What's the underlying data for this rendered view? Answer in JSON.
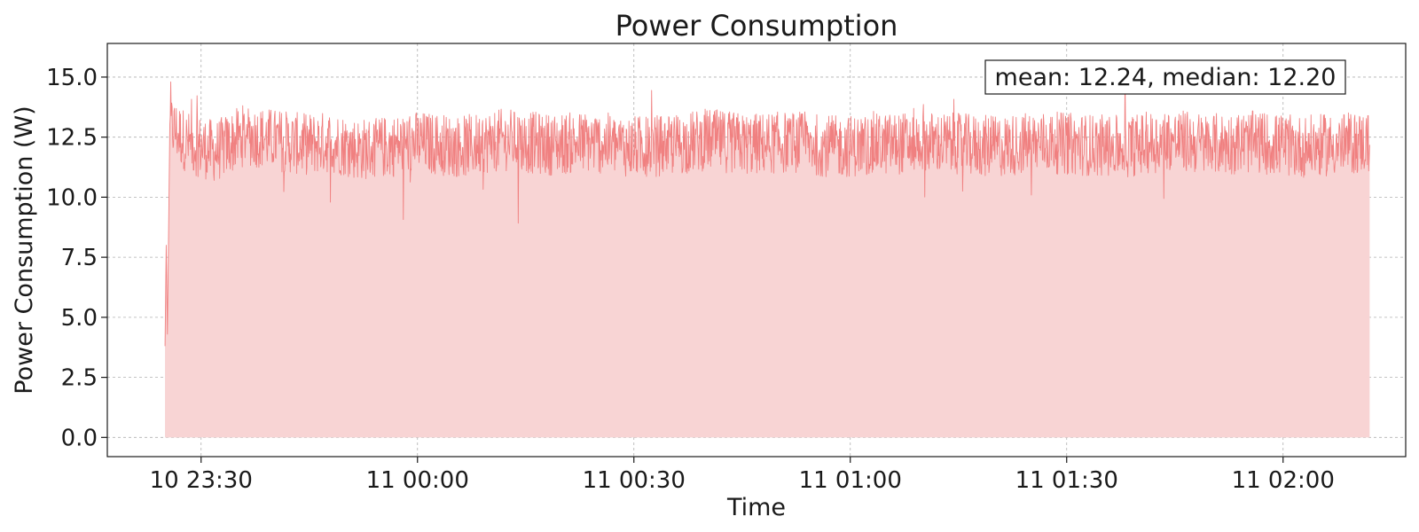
{
  "chart_data": {
    "type": "area",
    "title": "Power Consumption",
    "xlabel": "Time",
    "ylabel": "Power Consumption (W)",
    "x_tick_labels": [
      "10 23:30",
      "11 00:00",
      "11 00:30",
      "11 01:00",
      "11 01:30",
      "11 02:00"
    ],
    "x_tick_times": [
      "2024-01-10T23:30",
      "2024-01-11T00:00",
      "2024-01-11T00:30",
      "2024-01-11T01:00",
      "2024-01-11T01:30",
      "2024-01-11T02:00"
    ],
    "xlim": [
      "2024-01-10T23:17",
      "2024-01-11T02:17"
    ],
    "ylim": [
      -0.8,
      16.4
    ],
    "y_ticks": [
      0.0,
      2.5,
      5.0,
      7.5,
      10.0,
      12.5,
      15.0
    ],
    "y_tick_labels": [
      "0.0",
      "2.5",
      "5.0",
      "7.5",
      "10.0",
      "12.5",
      "15.0"
    ],
    "grid": true,
    "series": [
      {
        "color": "#f08080",
        "fill_color": "#f8d4d4",
        "x": [
          "2024-01-10T23:25",
          "2024-01-10T23:25:10",
          "2024-01-10T23:25:20",
          "2024-01-10T23:25:40",
          "2024-01-10T23:28",
          "2024-01-10T23:32",
          "2024-01-10T23:36",
          "2024-01-10T23:40",
          "2024-01-10T23:44",
          "2024-01-10T23:48",
          "2024-01-10T23:52",
          "2024-01-10T23:56",
          "2024-01-11T00:00",
          "2024-01-11T00:06",
          "2024-01-11T00:12",
          "2024-01-11T00:18",
          "2024-01-11T00:24",
          "2024-01-11T00:30",
          "2024-01-11T00:36",
          "2024-01-11T00:40",
          "2024-01-11T00:46",
          "2024-01-11T00:52",
          "2024-01-11T00:58",
          "2024-01-11T01:04",
          "2024-01-11T01:10",
          "2024-01-11T01:15",
          "2024-01-11T01:20",
          "2024-01-11T01:26",
          "2024-01-11T01:32",
          "2024-01-11T01:38",
          "2024-01-11T01:44",
          "2024-01-11T01:50",
          "2024-01-11T01:56",
          "2024-01-11T02:02",
          "2024-01-11T02:08",
          "2024-01-11T02:12"
        ],
        "y": [
          3.8,
          8.0,
          4.3,
          13.0,
          12.3,
          11.9,
          12.6,
          12.4,
          12.2,
          12.3,
          12.0,
          12.1,
          12.3,
          12.1,
          12.4,
          12.2,
          12.3,
          12.1,
          12.2,
          12.4,
          12.2,
          12.3,
          12.1,
          12.2,
          12.3,
          12.2,
          12.1,
          12.3,
          12.2,
          12.1,
          12.4,
          12.2,
          12.3,
          12.1,
          12.2,
          12.3
        ],
        "noise_amplitude": 1.3,
        "y_min_observed": 3.6,
        "y_max_observed": 15.6
      }
    ],
    "annotation": {
      "text": "mean: 12.24, median: 12.20",
      "position": "top-right",
      "mean": 12.24,
      "median": 12.2
    }
  }
}
